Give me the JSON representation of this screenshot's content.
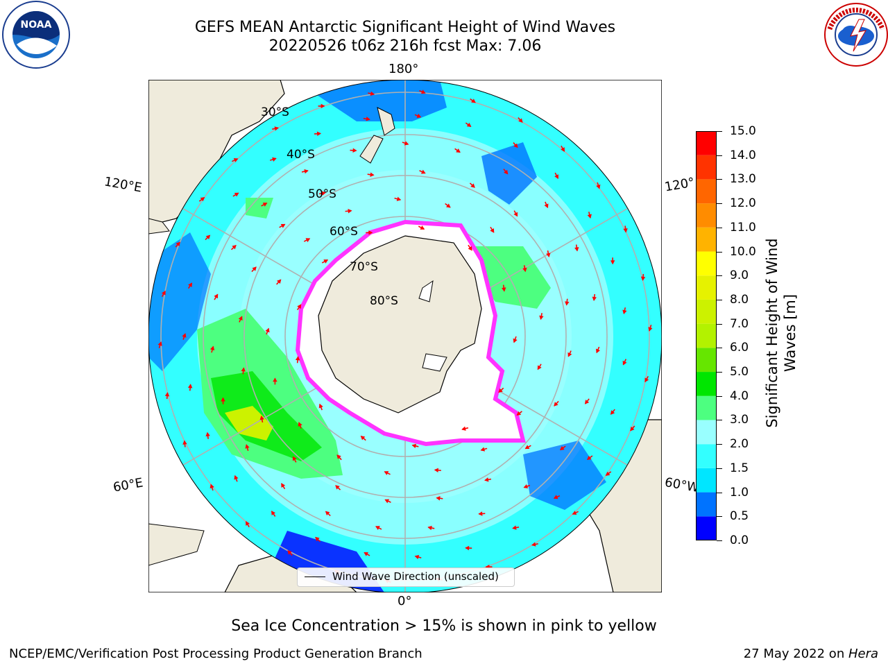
{
  "header": {
    "title_line1": "GEFS MEAN Antarctic Significant Height of Wind Waves",
    "title_line2": "20220526 t06z 216h fcst   Max: 7.06"
  },
  "logos": {
    "noaa_text": "NOAA",
    "noaa_ring": "NATIONAL OCEANIC AND ATMOSPHERIC ADMINISTRATION · U.S. DEPARTMENT OF COMMERCE",
    "nws_ring": "NATIONAL WEATHER SERVICE"
  },
  "map": {
    "lon_labels": {
      "top": "180°",
      "bottom": "0°",
      "left_upper": "120°E",
      "left_lower": "60°E",
      "right_upper": "120°",
      "right_lower": "60°W"
    },
    "lat_labels": [
      "30°S",
      "40°S",
      "50°S",
      "60°S",
      "70°S",
      "80°S"
    ],
    "legend_label": "Wind Wave Direction (unscaled)",
    "colors": {
      "land": "#efebdc",
      "sea_ice_free": "#ffffff",
      "sea_ice_edge": "#ff33ff",
      "arrow": "#ff0000",
      "grid": "#b0b0b0"
    }
  },
  "colorbar": {
    "title": "Significant Height of Wind Waves [m]",
    "title_line1": "Significant Height of Wind",
    "title_line2": "Waves [m]",
    "ticks": [
      "0.0",
      "0.5",
      "1.0",
      "1.5",
      "2.0",
      "3.0",
      "4.0",
      "5.0",
      "6.0",
      "7.0",
      "8.0",
      "9.0",
      "10.0",
      "11.0",
      "12.0",
      "13.0",
      "14.0",
      "15.0"
    ],
    "colors": [
      "#0000ff",
      "#0073ff",
      "#00e6ff",
      "#33ffff",
      "#99ffff",
      "#4dff80",
      "#00e600",
      "#66e600",
      "#b3f200",
      "#ccf200",
      "#e6f200",
      "#ffff00",
      "#ffb300",
      "#ff8c00",
      "#ff6600",
      "#ff3300",
      "#ff0000"
    ]
  },
  "notes": {
    "sea_ice": "Sea Ice Concentration > 15% is shown in pink to yellow"
  },
  "footer": {
    "left": "NCEP/EMC/Verification Post Processing Product Generation Branch",
    "right_date": "27 May 2022 on ",
    "right_machine": "Hera"
  }
}
